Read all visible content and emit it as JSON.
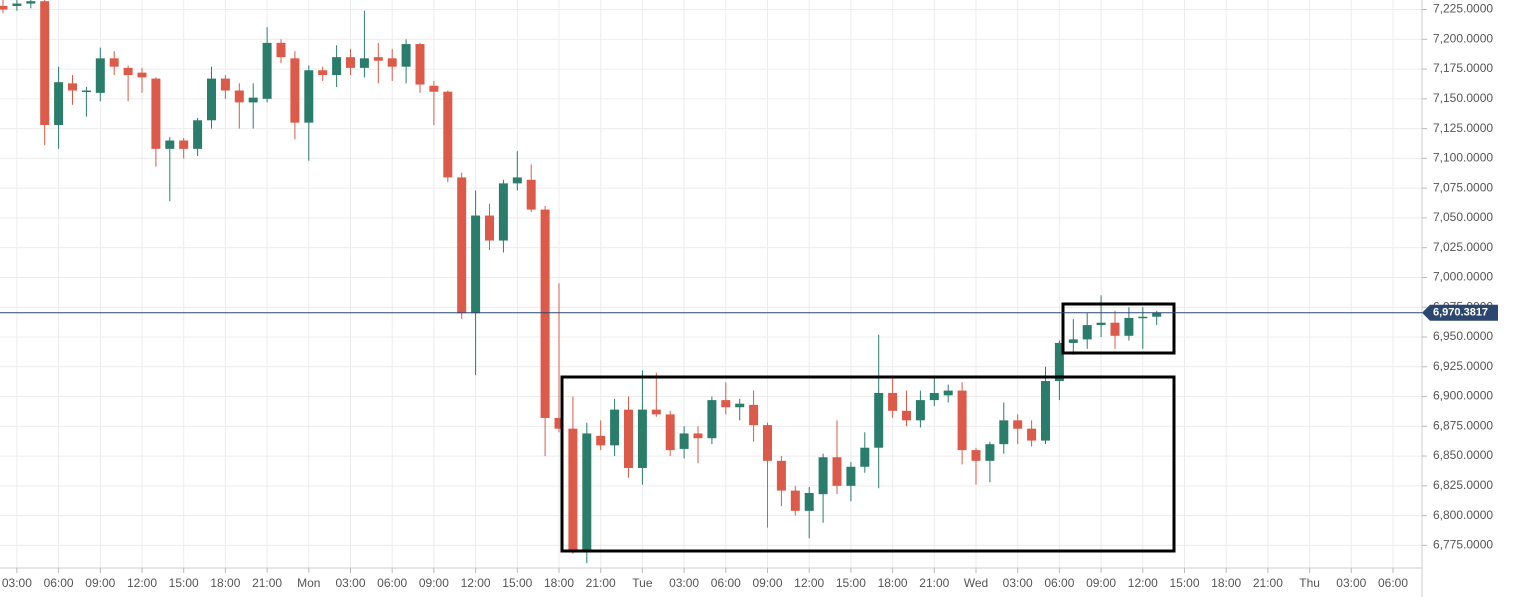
{
  "chart_data": {
    "type": "candlestick",
    "categories": [
      null,
      "03:00",
      null,
      null,
      "06:00",
      null,
      null,
      "09:00",
      null,
      null,
      "12:00",
      null,
      null,
      "15:00",
      null,
      null,
      "18:00",
      null,
      null,
      "21:00",
      null,
      null,
      "Mon",
      null,
      null,
      "03:00",
      null,
      null,
      "06:00",
      null,
      null,
      "09:00",
      null,
      null,
      "12:00",
      null,
      null,
      "15:00",
      null,
      null,
      "18:00",
      null,
      null,
      "21:00",
      null,
      null,
      "Tue",
      null,
      null,
      "03:00",
      null,
      null,
      "06:00",
      null,
      null,
      "09:00",
      null,
      null,
      "12:00",
      null,
      null,
      "15:00",
      null,
      null,
      "18:00",
      null,
      null,
      "21:00",
      null,
      null,
      "Wed",
      null,
      null,
      "03:00",
      null,
      null,
      "06:00",
      null,
      null,
      "09:00",
      null,
      null,
      "12:00",
      null,
      null,
      "15:00",
      null,
      null,
      "18:00",
      null,
      null,
      "21:00",
      null,
      null,
      "Thu",
      null,
      null,
      "03:00",
      null,
      null,
      "06:00",
      null
    ],
    "open": [
      7228,
      7228,
      7230,
      7232,
      7128,
      7163,
      7156,
      7155,
      7184,
      7176,
      7172,
      7167,
      7108,
      7115,
      7108,
      7132,
      7167,
      7157,
      7147,
      7150,
      7197,
      7184,
      7130,
      7174,
      7170,
      7185,
      7176,
      7185,
      7184,
      7177,
      7196,
      7161,
      7156,
      7084,
      6970,
      7052,
      7031,
      7079,
      7082,
      7057,
      6882,
      6873,
      6769,
      6867,
      6859,
      6889,
      6840,
      6889,
      6885,
      6856,
      6869,
      6865,
      6897,
      6891,
      6893,
      6876,
      6846,
      6821,
      6804,
      6818,
      6849,
      6825,
      6841,
      6857,
      6903,
      6888,
      6880,
      6897,
      6901,
      6905,
      6855,
      6846,
      6860,
      6880,
      6873,
      6863,
      6913,
      6945,
      6948,
      6960,
      6962,
      6951,
      6966,
      6967,
      null,
      null,
      null,
      null,
      null,
      null,
      null,
      null,
      null,
      null,
      null,
      null,
      null,
      null,
      null,
      null,
      null,
      null
    ],
    "high": [
      7235,
      7233,
      7234,
      7233,
      7177,
      7170,
      7160,
      7193,
      7190,
      7178,
      7176,
      7168,
      7118,
      7117,
      7134,
      7177,
      7170,
      7163,
      7163,
      7210,
      7200,
      7190,
      7178,
      7177,
      7195,
      7192,
      7224,
      7197,
      7192,
      7200,
      7197,
      7165,
      7157,
      7088,
      7073,
      7062,
      7082,
      7106,
      7095,
      7060,
      6995,
      6900,
      6878,
      6880,
      6898,
      6900,
      6922,
      6920,
      6888,
      6875,
      6875,
      6900,
      6912,
      6898,
      6905,
      6878,
      6850,
      6825,
      6824,
      6852,
      6880,
      6845,
      6870,
      6952,
      6917,
      6905,
      6905,
      6916,
      6910,
      6912,
      6857,
      6862,
      6895,
      6885,
      6880,
      6925,
      6947,
      6965,
      6970,
      6985,
      6972,
      6975,
      6975,
      6972,
      null,
      null,
      null,
      null,
      null,
      null,
      null,
      null,
      null,
      null,
      null,
      null,
      null,
      null,
      null,
      null,
      null,
      null
    ],
    "low": [
      7222,
      7224,
      7226,
      7111,
      7108,
      7145,
      7135,
      7148,
      7170,
      7148,
      7155,
      7093,
      7064,
      7100,
      7102,
      7125,
      7150,
      7125,
      7125,
      7147,
      7180,
      7116,
      7098,
      7165,
      7160,
      7170,
      7168,
      7163,
      7165,
      7163,
      7155,
      7128,
      7080,
      6965,
      6918,
      7023,
      7021,
      7073,
      7055,
      6850,
      6870,
      6768,
      6760,
      6855,
      6850,
      6832,
      6826,
      6883,
      6850,
      6848,
      6844,
      6860,
      6885,
      6880,
      6862,
      6790,
      6808,
      6800,
      6781,
      6794,
      6818,
      6812,
      6836,
      6823,
      6882,
      6875,
      6874,
      6892,
      6895,
      6843,
      6826,
      6828,
      6852,
      6860,
      6858,
      6860,
      6897,
      6935,
      6940,
      6950,
      6940,
      6947,
      6940,
      6960,
      null,
      null,
      null,
      null,
      null,
      null,
      null,
      null,
      null,
      null,
      null,
      null,
      null,
      null,
      null,
      null,
      null,
      null
    ],
    "close": [
      7225,
      7230,
      7232,
      7128,
      7164,
      7157,
      7157,
      7184,
      7177,
      7170,
      7168,
      7108,
      7115,
      7108,
      7132,
      7167,
      7157,
      7147,
      7151,
      7197,
      7185,
      7130,
      7174,
      7170,
      7185,
      7176,
      7184,
      7182,
      7177,
      7196,
      7162,
      7156,
      7084,
      6970,
      7052,
      7031,
      7079,
      7084,
      7057,
      6882,
      6873,
      6769,
      6869,
      6859,
      6889,
      6840,
      6889,
      6885,
      6855,
      6869,
      6865,
      6897,
      6891,
      6894,
      6876,
      6846,
      6821,
      6804,
      6819,
      6849,
      6825,
      6841,
      6857,
      6903,
      6888,
      6880,
      6897,
      6903,
      6905,
      6855,
      6846,
      6860,
      6880,
      6873,
      6863,
      6913,
      6945,
      6948,
      6960,
      6962,
      6951,
      6966,
      6967,
      6970.3817,
      null,
      null,
      null,
      null,
      null,
      null,
      null,
      null,
      null,
      null,
      null,
      null,
      null,
      null,
      null,
      null,
      null,
      null
    ],
    "up_color": "#2b7d6b",
    "down_color": "#dc5a49",
    "last_price": {
      "value": 6970.3817,
      "label": "6,970.3817"
    },
    "last_price_color": "#2b4770",
    "ylim": [
      6756,
      7233
    ],
    "yticks": [
      {
        "value": 6775,
        "label": "6,775.0000"
      },
      {
        "value": 6800,
        "label": "6,800.0000"
      },
      {
        "value": 6825,
        "label": "6,825.0000"
      },
      {
        "value": 6850,
        "label": "6,850.0000"
      },
      {
        "value": 6875,
        "label": "6,875.0000"
      },
      {
        "value": 6900,
        "label": "6,900.0000"
      },
      {
        "value": 6925,
        "label": "6,925.0000"
      },
      {
        "value": 6950,
        "label": "6,950.0000"
      },
      {
        "value": 6975,
        "label": "6,975.0000"
      },
      {
        "value": 7000,
        "label": "7,000.0000"
      },
      {
        "value": 7025,
        "label": "7,025.0000"
      },
      {
        "value": 7050,
        "label": "7,050.0000"
      },
      {
        "value": 7075,
        "label": "7,075.0000"
      },
      {
        "value": 7100,
        "label": "7,100.0000"
      },
      {
        "value": 7125,
        "label": "7,125.0000"
      },
      {
        "value": 7150,
        "label": "7,150.0000"
      },
      {
        "value": 7175,
        "label": "7,175.0000"
      },
      {
        "value": 7200,
        "label": "7,200.0000"
      },
      {
        "value": 7225,
        "label": "7,225.0000"
      }
    ],
    "grid": true
  }
}
